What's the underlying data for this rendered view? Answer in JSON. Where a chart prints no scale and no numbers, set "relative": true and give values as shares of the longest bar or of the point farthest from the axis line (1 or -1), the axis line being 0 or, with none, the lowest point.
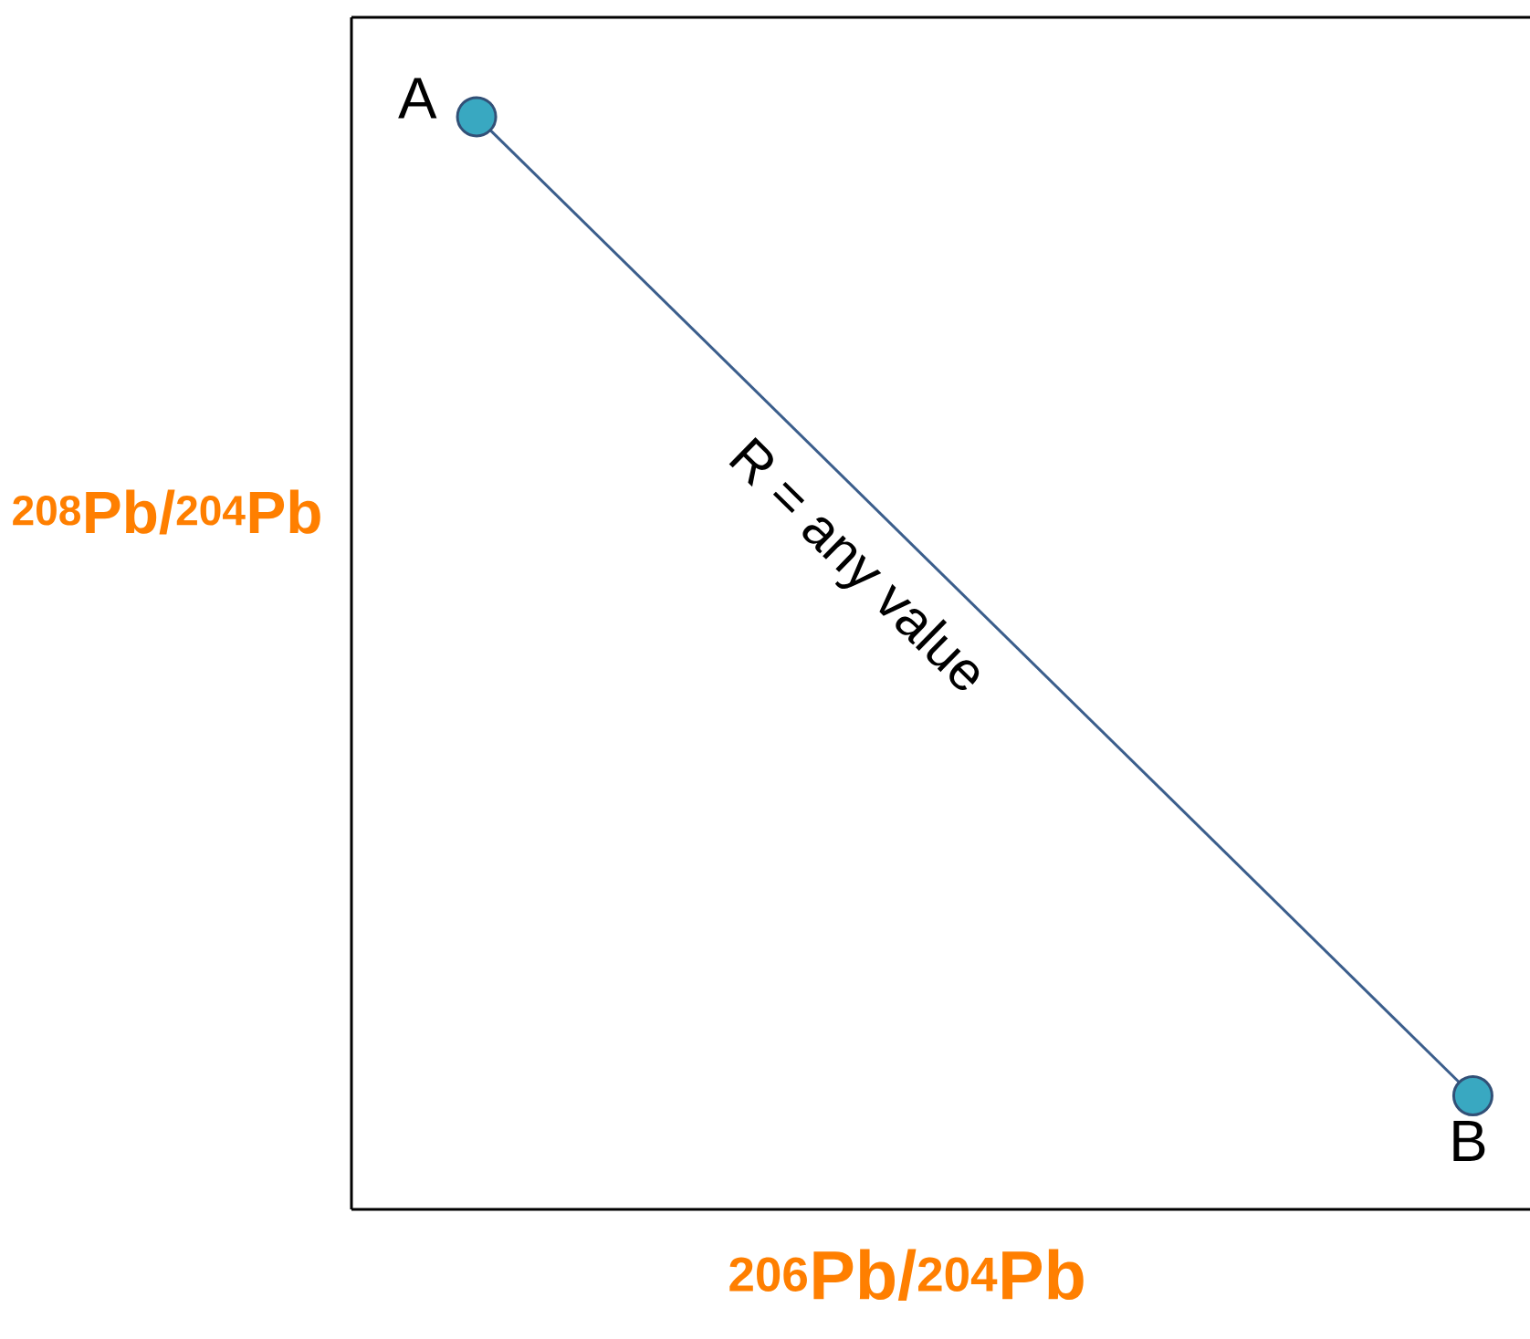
{
  "chart_data": {
    "type": "line",
    "relative": true,
    "categories": [
      null,
      null
    ],
    "series": [
      {
        "color": "#3b5e8c",
        "values": [
          1,
          0.104
        ]
      }
    ],
    "marker": "circle",
    "line_style": "solid",
    "xlabel": "$^{206}$Pb/$^{204}$Pb",
    "ylabel": "$^{208}$Pb/$^{204}$Pb",
    "annotations": [
      "A",
      "B",
      "R = any value"
    ]
  }
}
